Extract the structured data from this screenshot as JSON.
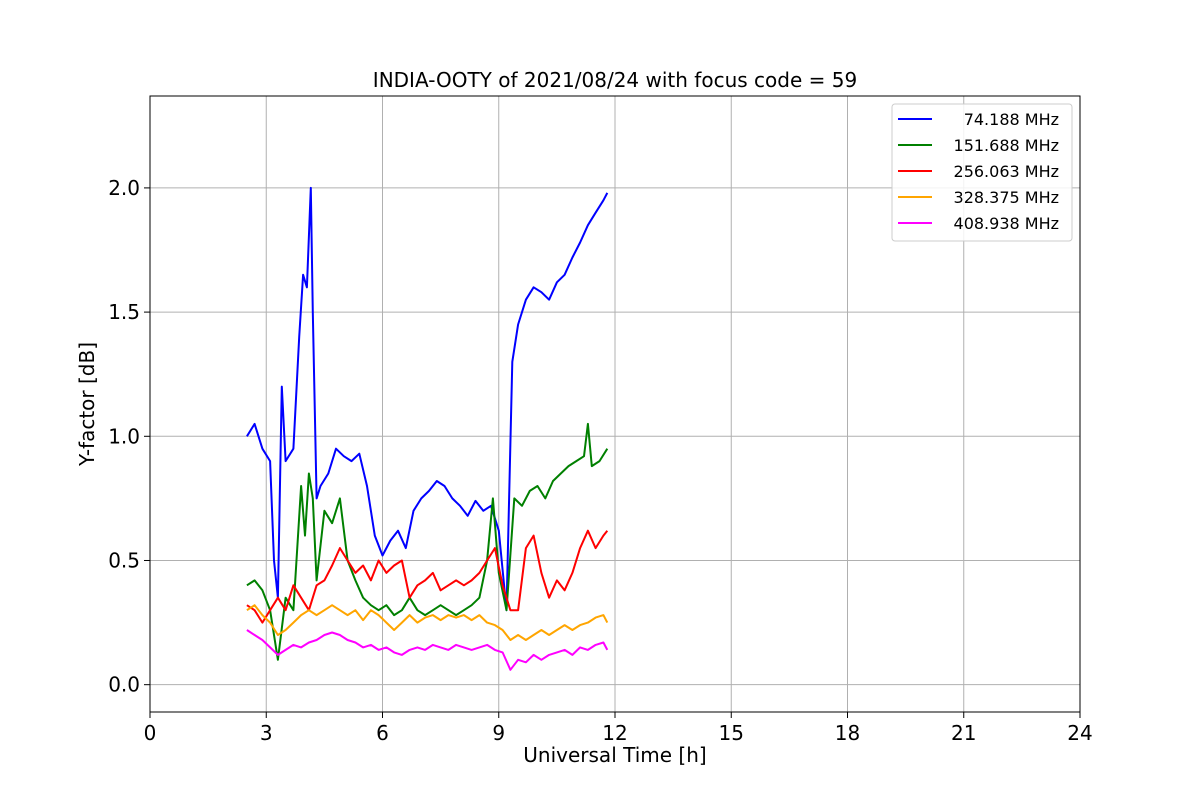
{
  "chart_data": {
    "type": "line",
    "title": "INDIA-OOTY of 2021/08/24 with focus code = 59",
    "xlabel": "Universal Time [h]",
    "ylabel": "Y-factor [dB]",
    "xlim": [
      0,
      24
    ],
    "ylim": [
      -0.11,
      2.37
    ],
    "xticks": [
      0,
      3,
      6,
      9,
      12,
      15,
      18,
      21,
      24
    ],
    "xtick_labels": [
      "0",
      "3",
      "6",
      "9",
      "12",
      "15",
      "18",
      "21",
      "24"
    ],
    "yticks": [
      0.0,
      0.5,
      1.0,
      1.5,
      2.0
    ],
    "ytick_labels": [
      "0.0",
      "0.5",
      "1.0",
      "1.5",
      "2.0"
    ],
    "grid": true,
    "legend_position": "top-right",
    "series": [
      {
        "name": "74.188 MHz",
        "color": "#0000ff",
        "x": [
          2.5,
          2.7,
          2.9,
          3.1,
          3.2,
          3.3,
          3.4,
          3.5,
          3.7,
          3.85,
          3.95,
          4.05,
          4.15,
          4.2,
          4.3,
          4.4,
          4.6,
          4.8,
          5.0,
          5.2,
          5.4,
          5.6,
          5.8,
          6.0,
          6.2,
          6.4,
          6.6,
          6.8,
          7.0,
          7.2,
          7.4,
          7.6,
          7.8,
          8.0,
          8.2,
          8.4,
          8.6,
          8.8,
          9.0,
          9.2,
          9.35,
          9.5,
          9.7,
          9.9,
          10.1,
          10.3,
          10.5,
          10.7,
          10.9,
          11.1,
          11.3,
          11.5,
          11.7,
          11.8
        ],
        "y": [
          1.0,
          1.05,
          0.95,
          0.9,
          0.5,
          0.35,
          1.2,
          0.9,
          0.95,
          1.4,
          1.65,
          1.6,
          2.0,
          1.5,
          0.75,
          0.8,
          0.85,
          0.95,
          0.92,
          0.9,
          0.93,
          0.8,
          0.6,
          0.52,
          0.58,
          0.62,
          0.55,
          0.7,
          0.75,
          0.78,
          0.82,
          0.8,
          0.75,
          0.72,
          0.68,
          0.74,
          0.7,
          0.72,
          0.62,
          0.3,
          1.3,
          1.45,
          1.55,
          1.6,
          1.58,
          1.55,
          1.62,
          1.65,
          1.72,
          1.78,
          1.85,
          1.9,
          1.95,
          1.98
        ]
      },
      {
        "name": "151.688 MHz",
        "color": "#008000",
        "x": [
          2.5,
          2.7,
          2.9,
          3.1,
          3.3,
          3.5,
          3.7,
          3.9,
          4.0,
          4.1,
          4.2,
          4.3,
          4.5,
          4.7,
          4.9,
          5.1,
          5.3,
          5.5,
          5.7,
          5.9,
          6.1,
          6.3,
          6.5,
          6.7,
          6.9,
          7.1,
          7.3,
          7.5,
          7.7,
          7.9,
          8.1,
          8.3,
          8.5,
          8.7,
          8.85,
          9.0,
          9.2,
          9.4,
          9.6,
          9.8,
          10.0,
          10.2,
          10.4,
          10.6,
          10.8,
          11.0,
          11.2,
          11.3,
          11.4,
          11.6,
          11.8
        ],
        "y": [
          0.4,
          0.42,
          0.38,
          0.3,
          0.1,
          0.35,
          0.3,
          0.8,
          0.6,
          0.85,
          0.75,
          0.42,
          0.7,
          0.65,
          0.75,
          0.5,
          0.42,
          0.35,
          0.32,
          0.3,
          0.32,
          0.28,
          0.3,
          0.35,
          0.3,
          0.28,
          0.3,
          0.32,
          0.3,
          0.28,
          0.3,
          0.32,
          0.35,
          0.5,
          0.75,
          0.45,
          0.3,
          0.75,
          0.72,
          0.78,
          0.8,
          0.75,
          0.82,
          0.85,
          0.88,
          0.9,
          0.92,
          1.05,
          0.88,
          0.9,
          0.95
        ]
      },
      {
        "name": "256.063 MHz",
        "color": "#ff0000",
        "x": [
          2.5,
          2.7,
          2.9,
          3.1,
          3.3,
          3.5,
          3.7,
          3.9,
          4.1,
          4.3,
          4.5,
          4.7,
          4.9,
          5.1,
          5.3,
          5.5,
          5.7,
          5.9,
          6.1,
          6.3,
          6.5,
          6.7,
          6.9,
          7.1,
          7.3,
          7.5,
          7.7,
          7.9,
          8.1,
          8.3,
          8.5,
          8.7,
          8.9,
          9.1,
          9.3,
          9.5,
          9.7,
          9.9,
          10.1,
          10.3,
          10.5,
          10.7,
          10.9,
          11.1,
          11.3,
          11.5,
          11.7,
          11.8
        ],
        "y": [
          0.32,
          0.3,
          0.25,
          0.3,
          0.35,
          0.3,
          0.4,
          0.35,
          0.3,
          0.4,
          0.42,
          0.48,
          0.55,
          0.5,
          0.45,
          0.48,
          0.42,
          0.5,
          0.45,
          0.48,
          0.5,
          0.35,
          0.4,
          0.42,
          0.45,
          0.38,
          0.4,
          0.42,
          0.4,
          0.42,
          0.45,
          0.5,
          0.55,
          0.4,
          0.3,
          0.3,
          0.55,
          0.6,
          0.45,
          0.35,
          0.42,
          0.38,
          0.45,
          0.55,
          0.62,
          0.55,
          0.6,
          0.62
        ]
      },
      {
        "name": "328.375 MHz",
        "color": "#ffa500",
        "x": [
          2.5,
          2.7,
          2.9,
          3.1,
          3.3,
          3.5,
          3.7,
          3.9,
          4.1,
          4.3,
          4.5,
          4.7,
          4.9,
          5.1,
          5.3,
          5.5,
          5.7,
          5.9,
          6.1,
          6.3,
          6.5,
          6.7,
          6.9,
          7.1,
          7.3,
          7.5,
          7.7,
          7.9,
          8.1,
          8.3,
          8.5,
          8.7,
          8.9,
          9.1,
          9.3,
          9.5,
          9.7,
          9.9,
          10.1,
          10.3,
          10.5,
          10.7,
          10.9,
          11.1,
          11.3,
          11.5,
          11.7,
          11.8
        ],
        "y": [
          0.3,
          0.32,
          0.28,
          0.25,
          0.2,
          0.22,
          0.25,
          0.28,
          0.3,
          0.28,
          0.3,
          0.32,
          0.3,
          0.28,
          0.3,
          0.26,
          0.3,
          0.28,
          0.25,
          0.22,
          0.25,
          0.28,
          0.25,
          0.27,
          0.28,
          0.26,
          0.28,
          0.27,
          0.28,
          0.26,
          0.28,
          0.25,
          0.24,
          0.22,
          0.18,
          0.2,
          0.18,
          0.2,
          0.22,
          0.2,
          0.22,
          0.24,
          0.22,
          0.24,
          0.25,
          0.27,
          0.28,
          0.25
        ]
      },
      {
        "name": "408.938 MHz",
        "color": "#ff00ff",
        "x": [
          2.5,
          2.7,
          2.9,
          3.1,
          3.3,
          3.5,
          3.7,
          3.9,
          4.1,
          4.3,
          4.5,
          4.7,
          4.9,
          5.1,
          5.3,
          5.5,
          5.7,
          5.9,
          6.1,
          6.3,
          6.5,
          6.7,
          6.9,
          7.1,
          7.3,
          7.5,
          7.7,
          7.9,
          8.1,
          8.3,
          8.5,
          8.7,
          8.9,
          9.1,
          9.3,
          9.5,
          9.7,
          9.9,
          10.1,
          10.3,
          10.5,
          10.7,
          10.9,
          11.1,
          11.3,
          11.5,
          11.7,
          11.8
        ],
        "y": [
          0.22,
          0.2,
          0.18,
          0.15,
          0.12,
          0.14,
          0.16,
          0.15,
          0.17,
          0.18,
          0.2,
          0.21,
          0.2,
          0.18,
          0.17,
          0.15,
          0.16,
          0.14,
          0.15,
          0.13,
          0.12,
          0.14,
          0.15,
          0.14,
          0.16,
          0.15,
          0.14,
          0.16,
          0.15,
          0.14,
          0.15,
          0.16,
          0.14,
          0.13,
          0.06,
          0.1,
          0.09,
          0.12,
          0.1,
          0.12,
          0.13,
          0.14,
          0.12,
          0.15,
          0.14,
          0.16,
          0.17,
          0.14
        ]
      }
    ]
  }
}
